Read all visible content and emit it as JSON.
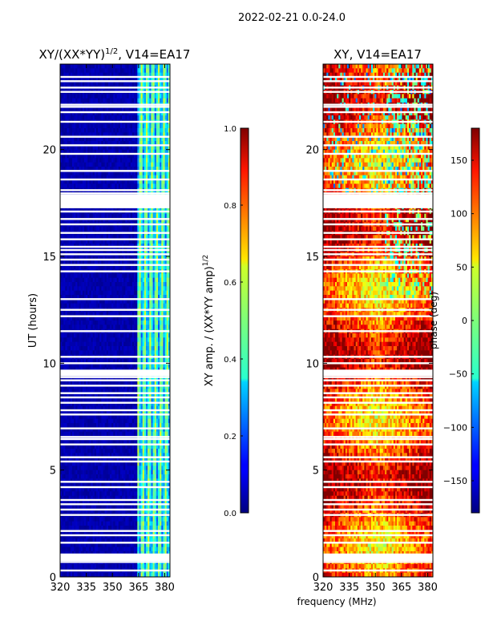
{
  "suptitle": "2022-02-21 0.0-24.0",
  "chart_data": [
    {
      "type": "heatmap",
      "title_main": "XY/(XX*YY)",
      "title_exp": "1/2",
      "title_tail": ", V14=EA17",
      "xlabel": "",
      "ylabel": "UT (hours)",
      "xlim": [
        320,
        383
      ],
      "ylim": [
        0,
        24
      ],
      "xticks": [
        320,
        335,
        350,
        365,
        380
      ],
      "yticks": [
        0,
        5,
        10,
        15,
        20
      ],
      "colorbar": {
        "label_main": "XY amp. / (XX*YY amp)",
        "label_exp": "1/2",
        "range": [
          0.0,
          1.0
        ],
        "ticks": [
          "0.0",
          "0.2",
          "0.4",
          "0.6",
          "0.8",
          "1.0"
        ],
        "colormap": "jet"
      },
      "active_band_mhz": [
        364,
        383
      ],
      "typical_values": {
        "outside_band": 0.02,
        "inside_band": 0.45
      }
    },
    {
      "type": "heatmap",
      "title": "XY, V14=EA17",
      "xlabel": "frequency (MHz)",
      "ylabel": "",
      "xlim": [
        320,
        383
      ],
      "ylim": [
        0,
        24
      ],
      "xticks": [
        320,
        335,
        350,
        365,
        380
      ],
      "yticks": [
        0,
        5,
        10,
        15,
        20
      ],
      "colorbar": {
        "label": "phase (deg)",
        "range": [
          -180,
          180
        ],
        "ticks": [
          "150",
          "100",
          "50",
          "0",
          "−50",
          "−100",
          "−150"
        ],
        "colormap": "jet"
      },
      "typical_values": {
        "center_band_deg": 80,
        "edges_deg": 150
      }
    }
  ],
  "gap_rows_hours": [
    0.3,
    0.7,
    0.9,
    1.05,
    1.6,
    1.95,
    2.15,
    2.9,
    3.15,
    3.4,
    3.6,
    4.2,
    4.45,
    5.4,
    5.6,
    6.2,
    6.45,
    6.55,
    6.95,
    7.6,
    7.8,
    8.15,
    8.4,
    8.6,
    8.95,
    9.2,
    9.35,
    9.5,
    9.65,
    10.0,
    10.3,
    11.5,
    12.2,
    12.5,
    13.0,
    14.3,
    14.6,
    14.85,
    15.1,
    15.3,
    15.45,
    15.8,
    16.1,
    16.5,
    16.75,
    17.1,
    17.3,
    17.55,
    17.75,
    17.95,
    18.1,
    18.6,
    19.0,
    19.8,
    20.2,
    20.6,
    21.3,
    21.75,
    22.0,
    22.1,
    22.7,
    22.9,
    23.2,
    23.4
  ]
}
